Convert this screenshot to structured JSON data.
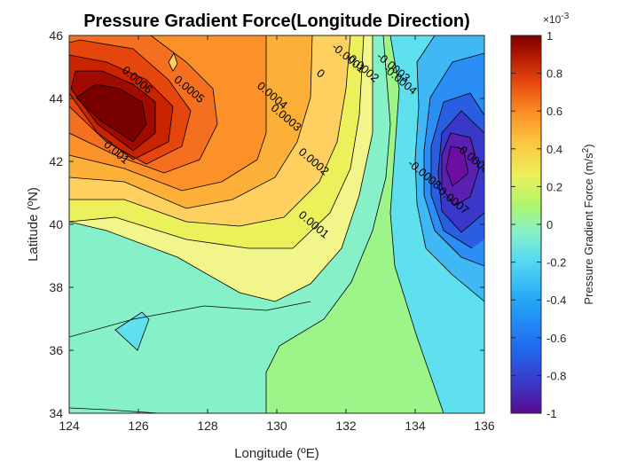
{
  "chart_data": {
    "type": "contour",
    "title": "Pressure Gradient Force(Longitude Direction)",
    "xlabel": "Longitude (ºE)",
    "ylabel": "Latitude (ºN)",
    "xlim": [
      124,
      136
    ],
    "ylim": [
      34,
      46
    ],
    "xticks": [
      "124",
      "126",
      "128",
      "130",
      "132",
      "134",
      "136"
    ],
    "yticks": [
      "34",
      "36",
      "38",
      "40",
      "42",
      "44",
      "46"
    ],
    "colorbar": {
      "label": "Pressure Gradient Force (m/s",
      "label_sup": "2",
      "label_end": ")",
      "exponent_prefix": "×10",
      "exponent": "-3",
      "limits": [
        -1,
        1
      ],
      "ticks": [
        "-1",
        "-0.8",
        "-0.6",
        "-0.4",
        "-0.2",
        "0",
        "0.2",
        "0.4",
        "0.6",
        "0.8",
        "1"
      ],
      "colormap": [
        "#5a0a90",
        "#3a38c8",
        "#1f6ef2",
        "#24a7f6",
        "#55d7f2",
        "#86f2c8",
        "#aef56c",
        "#ecf05a",
        "#fdc340",
        "#fb8c24",
        "#e5460d",
        "#b01700",
        "#7a0000"
      ]
    },
    "contour_labels": [
      {
        "text": "0.0006",
        "x": 125.9,
        "y": 44.5
      },
      {
        "text": "0.0005",
        "x": 127.4,
        "y": 44.2
      },
      {
        "text": "0.001",
        "x": 125.3,
        "y": 42.2
      },
      {
        "text": "0.0004",
        "x": 129.8,
        "y": 44.0
      },
      {
        "text": "0.0003",
        "x": 130.2,
        "y": 43.3
      },
      {
        "text": "0.0002",
        "x": 131.0,
        "y": 41.9
      },
      {
        "text": "0.0001",
        "x": 131.0,
        "y": 39.9
      },
      {
        "text": "0",
        "x": 131.2,
        "y": 44.7
      },
      {
        "text": "-0.0001",
        "x": 132.0,
        "y": 45.2
      },
      {
        "text": "-0.0002",
        "x": 132.4,
        "y": 44.9
      },
      {
        "text": "-0.0003",
        "x": 133.3,
        "y": 44.9
      },
      {
        "text": "-0.0004",
        "x": 133.5,
        "y": 44.5
      },
      {
        "text": "-0.0006",
        "x": 135.6,
        "y": 42.0
      },
      {
        "text": "-0.0008",
        "x": 134.2,
        "y": 41.5
      },
      {
        "text": "-0.0007",
        "x": 135.0,
        "y": 40.7
      }
    ]
  }
}
